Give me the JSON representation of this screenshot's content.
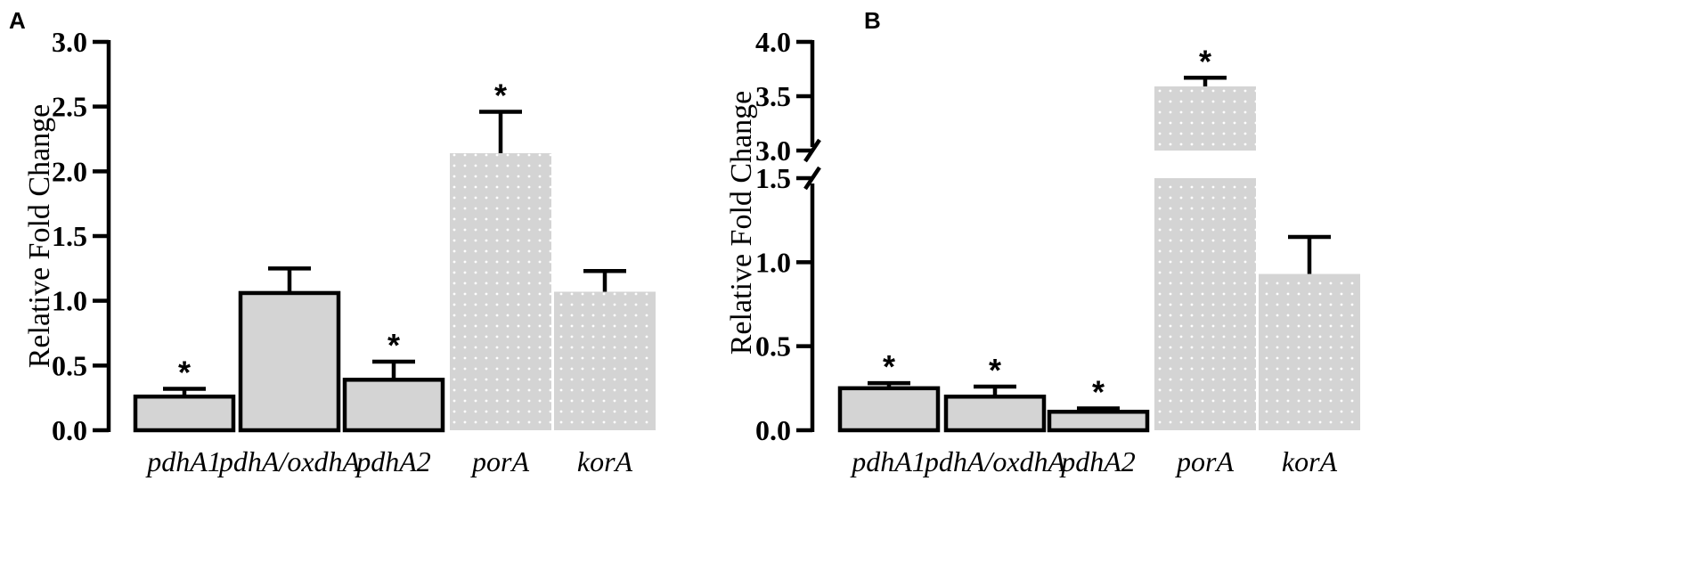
{
  "panels": [
    {
      "letter": "A"
    },
    {
      "letter": "B"
    }
  ],
  "colors": {
    "bar_fill": "#d4d4d4",
    "dotted_fill": "#d4d4d4",
    "outline": "#000000"
  },
  "chart_data": [
    {
      "type": "bar",
      "panel": "A",
      "ylabel": "Relative Fold Change",
      "ylim": [
        0,
        3.0
      ],
      "yticks": [
        "0.0",
        "0.5",
        "1.0",
        "1.5",
        "2.0",
        "2.5",
        "3.0"
      ],
      "categories": [
        "pdhA1",
        "pdhA/oxdhA",
        "pdhA2",
        "porA",
        "korA"
      ],
      "values": [
        0.26,
        1.06,
        0.39,
        2.14,
        1.07
      ],
      "errors": [
        0.06,
        0.19,
        0.14,
        0.32,
        0.16
      ],
      "significance": [
        "*",
        "",
        "*",
        "*",
        ""
      ],
      "style": [
        "outlined",
        "outlined",
        "outlined",
        "dotted",
        "dotted"
      ]
    },
    {
      "type": "bar",
      "panel": "B",
      "ylabel": "Relative Fold Change",
      "ylim": [
        0,
        4.0
      ],
      "axis_break": [
        1.5,
        3.0
      ],
      "yticks_lower": [
        "0.0",
        "0.5",
        "1.0",
        "1.5"
      ],
      "yticks_upper": [
        "3.0",
        "3.5",
        "4.0"
      ],
      "categories": [
        "pdhA1",
        "pdhA/oxdhA",
        "pdhA2",
        "porA",
        "korA"
      ],
      "values": [
        0.25,
        0.2,
        0.11,
        3.59,
        0.93
      ],
      "errors": [
        0.03,
        0.06,
        0.02,
        0.08,
        0.22
      ],
      "significance": [
        "*",
        "*",
        "*",
        "*",
        ""
      ],
      "style": [
        "outlined",
        "outlined",
        "outlined",
        "dotted",
        "dotted"
      ]
    }
  ]
}
